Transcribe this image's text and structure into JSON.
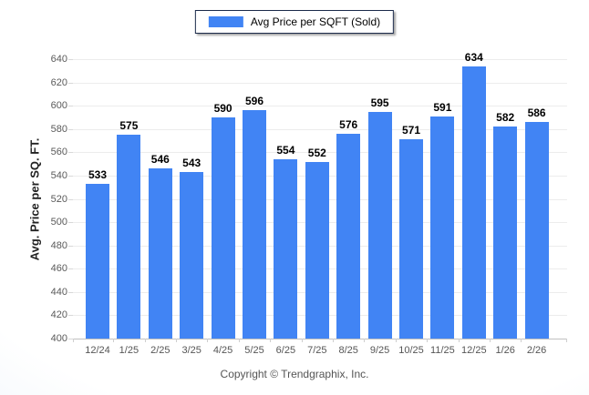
{
  "legend": {
    "label": "Avg Price per SQFT (Sold)"
  },
  "footer": {
    "copyright": "Copyright © Trendgraphix, Inc."
  },
  "chart_data": {
    "type": "bar",
    "title": "",
    "categories": [
      "12/24",
      "1/25",
      "2/25",
      "3/25",
      "4/25",
      "5/25",
      "6/25",
      "7/25",
      "8/25",
      "9/25",
      "10/25",
      "11/25",
      "12/25",
      "1/26",
      "2/26"
    ],
    "values": [
      533,
      575,
      546,
      543,
      590,
      596,
      554,
      552,
      576,
      595,
      571,
      591,
      634,
      582,
      586
    ],
    "xlabel": "",
    "ylabel": "Avg. Price per SQ. FT.",
    "ylim": [
      400,
      640
    ],
    "ytick_step": 20,
    "grid": true,
    "legend_position": "top-center",
    "legend_entries": [
      "Avg Price per SQFT (Sold)"
    ],
    "bar_color": "#4184f4"
  },
  "colors": {
    "bar": "#4184f4",
    "gridline": "#ececec",
    "axis_line": "#c0c0c0",
    "tick_label": "#5a5a5a",
    "value_label": "#000000",
    "legend_border": "#1b2a4a",
    "background_edge": "#e2edf8"
  }
}
